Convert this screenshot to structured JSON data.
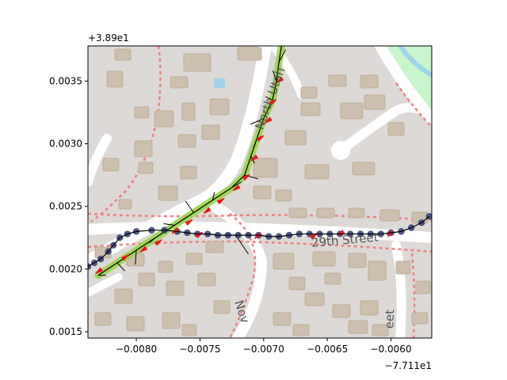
{
  "chart_data": {
    "type": "scatter",
    "background": "map-tiles",
    "x_offset_text": "−7.711e1",
    "y_offset_text": "+3.89e1",
    "xlim": [
      -0.00838,
      -0.00568
    ],
    "ylim": [
      0.00145,
      0.00378
    ],
    "x_ticks": [
      {
        "v": -0.008,
        "label": "−0.0080"
      },
      {
        "v": -0.0075,
        "label": "−0.0075"
      },
      {
        "v": -0.007,
        "label": "−0.0070"
      },
      {
        "v": -0.0065,
        "label": "−0.0065"
      },
      {
        "v": -0.006,
        "label": "−0.0060"
      }
    ],
    "y_ticks": [
      {
        "v": 0.0015,
        "label": "0.0015"
      },
      {
        "v": 0.002,
        "label": "0.0020"
      },
      {
        "v": 0.0025,
        "label": "0.0025"
      },
      {
        "v": 0.003,
        "label": "0.0030"
      },
      {
        "v": 0.0035,
        "label": "0.0035"
      }
    ],
    "street_labels": [
      {
        "text": "29th Street",
        "x": -0.00636,
        "y": 0.0022,
        "rot": -5
      },
      {
        "text": "North Utah",
        "x": -0.00692,
        "y": 0.00335,
        "rot": -70
      },
      {
        "text": "Nov",
        "x": -0.0072,
        "y": 0.00165,
        "rot": 72
      },
      {
        "text": "eet",
        "x": -0.00598,
        "y": 0.0016,
        "rot": -88
      }
    ],
    "colors": {
      "track_dots": "#2f3a6e",
      "track_line": "#000000",
      "highlight": "#9ad34a",
      "red_arrows": "#e8141c",
      "map_bg": "#dcd9d6",
      "building": "#cdbfae",
      "road": "#ffffff",
      "dashed_road": "#f08080",
      "park": "#c8f5cc",
      "water": "#9fd3ea"
    },
    "series": [
      {
        "kind": "track-points",
        "points": [
          [
            -0.00838,
            0.00202
          ],
          [
            -0.00833,
            0.00205
          ],
          [
            -0.00828,
            0.00208
          ],
          [
            -0.00822,
            0.00214
          ],
          [
            -0.00818,
            0.00219
          ],
          [
            -0.00813,
            0.00225
          ],
          [
            -0.00807,
            0.00228
          ],
          [
            -0.008,
            0.0023
          ],
          [
            -0.00788,
            0.00231
          ],
          [
            -0.00778,
            0.00231
          ],
          [
            -0.00768,
            0.0023
          ],
          [
            -0.0076,
            0.00229
          ],
          [
            -0.00752,
            0.00228
          ],
          [
            -0.00744,
            0.00228
          ],
          [
            -0.00736,
            0.00227
          ],
          [
            -0.00728,
            0.00227
          ],
          [
            -0.0072,
            0.00227
          ],
          [
            -0.00712,
            0.00227
          ],
          [
            -0.00704,
            0.00227
          ],
          [
            -0.00696,
            0.00226
          ],
          [
            -0.00688,
            0.00226
          ],
          [
            -0.0068,
            0.00227
          ],
          [
            -0.00672,
            0.00228
          ],
          [
            -0.00664,
            0.00228
          ],
          [
            -0.00656,
            0.00228
          ],
          [
            -0.00648,
            0.00228
          ],
          [
            -0.0064,
            0.00228
          ],
          [
            -0.00632,
            0.00228
          ],
          [
            -0.00624,
            0.00228
          ],
          [
            -0.00616,
            0.00228
          ],
          [
            -0.00608,
            0.00228
          ],
          [
            -0.006,
            0.00229
          ],
          [
            -0.00592,
            0.0023
          ],
          [
            -0.00584,
            0.00233
          ],
          [
            -0.00576,
            0.00237
          ],
          [
            -0.0057,
            0.00242
          ]
        ]
      },
      {
        "kind": "green-highlight-path",
        "points": [
          [
            -0.0083,
            0.00195
          ],
          [
            -0.00815,
            0.00205
          ],
          [
            -0.008,
            0.00215
          ],
          [
            -0.00785,
            0.00225
          ],
          [
            -0.0077,
            0.00235
          ],
          [
            -0.00755,
            0.00245
          ],
          [
            -0.0074,
            0.00255
          ],
          [
            -0.00725,
            0.00265
          ],
          [
            -0.00715,
            0.00275
          ],
          [
            -0.0071,
            0.0029
          ],
          [
            -0.00705,
            0.00305
          ],
          [
            -0.007,
            0.0032
          ],
          [
            -0.00693,
            0.00335
          ],
          [
            -0.0069,
            0.0035
          ],
          [
            -0.00688,
            0.00365
          ],
          [
            -0.00686,
            0.00378
          ]
        ]
      },
      {
        "kind": "red-arrows",
        "points": [
          [
            -0.00808,
            0.0021
          ],
          [
            -0.00795,
            0.00215
          ],
          [
            -0.00782,
            0.00222
          ],
          [
            -0.0077,
            0.0023
          ],
          [
            -0.00758,
            0.00238
          ],
          [
            -0.00745,
            0.00246
          ],
          [
            -0.00733,
            0.00255
          ],
          [
            -0.00722,
            0.00264
          ],
          [
            -0.00713,
            0.00274
          ],
          [
            -0.00708,
            0.00288
          ],
          [
            -0.00702,
            0.00305
          ],
          [
            -0.00697,
            0.00318
          ],
          [
            -0.00692,
            0.00334
          ],
          [
            -0.00688,
            0.0035
          ],
          [
            -0.0075,
            0.00228
          ],
          [
            -0.00705,
            0.00226
          ],
          [
            -0.0066,
            0.00227
          ],
          [
            -0.0064,
            0.00228
          ],
          [
            -0.006,
            0.00229
          ],
          [
            -0.0083,
            0.00198
          ]
        ]
      }
    ]
  }
}
